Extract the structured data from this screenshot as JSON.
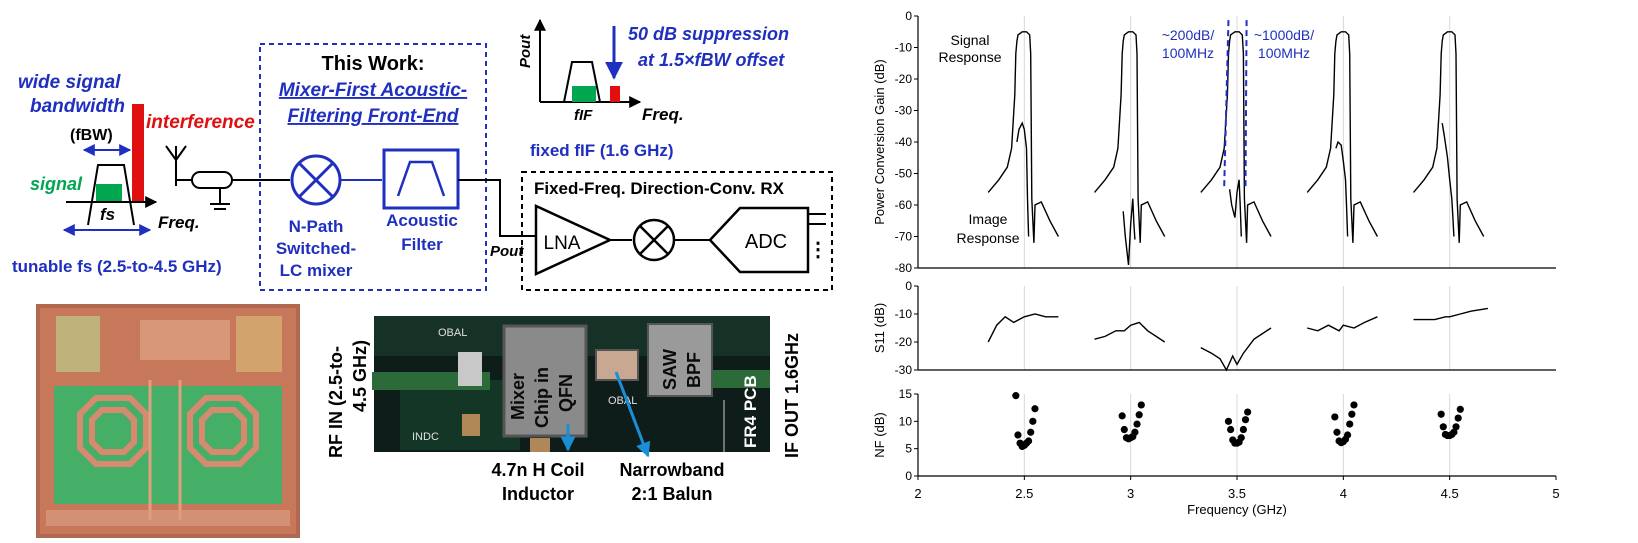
{
  "colors": {
    "blue": "#1f2fbf",
    "red": "#e01010",
    "green": "#00a650",
    "black": "#000000",
    "chip_orange": "#c8785a",
    "chip_green": "#2fb86a",
    "pcb_dark": "#0e1d1a",
    "photo_label": "#0a0a0a"
  },
  "diagram": {
    "input_spectrum": {
      "wide_bw_label_1": "wide signal",
      "wide_bw_label_2": "bandwidth",
      "fbw_label": "(fBW)",
      "signal_label": "signal",
      "interference_label": "interference",
      "fs_label": "fs",
      "freq_label": "Freq.",
      "tunable_label": "tunable fs (2.5-to-4.5 GHz)"
    },
    "this_work": {
      "title": "This Work:",
      "subtitle_1": "Mixer-First Acoustic-",
      "subtitle_2": "Filtering Front-End",
      "mixer_label_1": "N-Path",
      "mixer_label_2": "Switched-",
      "mixer_label_3": "LC mixer",
      "filter_label_1": "Acoustic",
      "filter_label_2": "Filter"
    },
    "output_spectrum": {
      "pout_label": "Pout",
      "suppression_1": "50 dB suppression",
      "suppression_2": "at 1.5×fBW offset",
      "fif_label": "fIF",
      "freq_label": "Freq.",
      "fixed_if_label": "fixed fIF (1.6 GHz)"
    },
    "rx": {
      "title": "Fixed-Freq. Direction-Conv. RX",
      "lna_label": "LNA",
      "adc_label": "ADC",
      "pout_label": "Pout"
    }
  },
  "photos": {
    "chip_photo": "die-micrograph",
    "pcb": {
      "rf_in_1": "RF IN (2.5-to-",
      "rf_in_2": "4.5 GHz)",
      "if_out": "IF OUT 1.6GHz",
      "mixer_chip_1": "Mixer",
      "mixer_chip_2": "Chip in",
      "mixer_chip_3": "QFN",
      "saw_1": "SAW",
      "saw_2": "BPF",
      "fr4": "FR4 PCB",
      "coil_1": "4.7n H Coil",
      "coil_2": "Inductor",
      "balun_1": "Narrowband",
      "balun_2": "2:1 Balun",
      "silk_obal": "OBAL",
      "silk_indc": "INDC"
    }
  },
  "chart_data": [
    {
      "type": "line",
      "ylabel": "Power Conversion Gain (dB)",
      "ylim": [
        -80,
        0
      ],
      "yticks": [
        0,
        -10,
        -20,
        -30,
        -40,
        -50,
        -60,
        -70,
        -80
      ],
      "xlim": [
        2,
        5
      ],
      "annotations": [
        "Signal Response",
        "Image Response",
        "~200dB/ 100MHz",
        "~1000dB/ 100MHz"
      ],
      "series": [
        {
          "role": "signal",
          "lo": 2.5,
          "x": [
            2.33,
            2.38,
            2.42,
            2.44,
            2.455,
            2.46,
            2.465,
            2.47,
            2.49,
            2.51,
            2.525,
            2.53,
            2.535,
            2.545,
            2.55,
            2.58,
            2.62,
            2.66
          ],
          "y": [
            -56,
            -52,
            -48,
            -42,
            -25,
            -12,
            -8,
            -6,
            -5,
            -5,
            -6,
            -12,
            -58,
            -72,
            -60,
            -59,
            -65,
            -70
          ]
        },
        {
          "role": "image",
          "lo": 2.5,
          "x": [
            2.465,
            2.475,
            2.49,
            2.5,
            2.51,
            2.515,
            2.52
          ],
          "y": [
            -40,
            -36,
            -34,
            -36,
            -42,
            -58,
            -70
          ]
        },
        {
          "role": "signal",
          "lo": 3.0,
          "x": [
            2.83,
            2.88,
            2.92,
            2.94,
            2.955,
            2.96,
            2.965,
            2.97,
            2.99,
            3.01,
            3.025,
            3.03,
            3.035,
            3.045,
            3.05,
            3.08,
            3.12,
            3.16
          ],
          "y": [
            -56,
            -52,
            -48,
            -42,
            -25,
            -12,
            -8,
            -6,
            -5,
            -5,
            -6,
            -12,
            -58,
            -72,
            -60,
            -59,
            -65,
            -70
          ]
        },
        {
          "role": "image",
          "lo": 3.0,
          "x": [
            2.965,
            2.975,
            2.99,
            3.0,
            3.01,
            3.015,
            3.02
          ],
          "y": [
            -62,
            -70,
            -79,
            -66,
            -58,
            -66,
            -71
          ]
        },
        {
          "role": "signal",
          "lo": 3.5,
          "x": [
            3.33,
            3.38,
            3.42,
            3.44,
            3.455,
            3.46,
            3.465,
            3.47,
            3.49,
            3.51,
            3.525,
            3.53,
            3.535,
            3.545,
            3.55,
            3.58,
            3.62,
            3.66
          ],
          "y": [
            -56,
            -52,
            -48,
            -42,
            -25,
            -12,
            -8,
            -6,
            -5,
            -5,
            -6,
            -12,
            -58,
            -72,
            -60,
            -59,
            -65,
            -70
          ]
        },
        {
          "role": "image",
          "lo": 3.5,
          "x": [
            3.465,
            3.475,
            3.49,
            3.5,
            3.51,
            3.515,
            3.52
          ],
          "y": [
            -55,
            -60,
            -64,
            -56,
            -52,
            -60,
            -70
          ]
        },
        {
          "role": "signal",
          "lo": 4.0,
          "x": [
            3.83,
            3.88,
            3.92,
            3.94,
            3.955,
            3.96,
            3.965,
            3.97,
            3.99,
            4.01,
            4.025,
            4.03,
            4.035,
            4.045,
            4.05,
            4.08,
            4.12,
            4.16
          ],
          "y": [
            -56,
            -52,
            -48,
            -42,
            -25,
            -12,
            -8,
            -6,
            -5,
            -5,
            -6,
            -12,
            -58,
            -72,
            -60,
            -59,
            -65,
            -70
          ]
        },
        {
          "role": "image",
          "lo": 4.0,
          "x": [
            3.965,
            3.975,
            3.99,
            4.0,
            4.01,
            4.015,
            4.02
          ],
          "y": [
            -42,
            -40,
            -41,
            -46,
            -52,
            -60,
            -70
          ]
        },
        {
          "role": "signal",
          "lo": 4.5,
          "x": [
            4.33,
            4.38,
            4.42,
            4.44,
            4.455,
            4.46,
            4.465,
            4.47,
            4.49,
            4.51,
            4.525,
            4.53,
            4.535,
            4.545,
            4.55,
            4.58,
            4.62,
            4.66
          ],
          "y": [
            -56,
            -52,
            -48,
            -42,
            -25,
            -12,
            -8,
            -6,
            -5,
            -5,
            -6,
            -12,
            -58,
            -72,
            -60,
            -59,
            -65,
            -70
          ]
        },
        {
          "role": "image",
          "lo": 4.5,
          "x": [
            4.465,
            4.475,
            4.49,
            4.5,
            4.51,
            4.515,
            4.52
          ],
          "y": [
            -34,
            -38,
            -45,
            -52,
            -58,
            -64,
            -70
          ]
        },
        {
          "role": "slope-marker",
          "x": [
            3.44,
            3.46
          ],
          "y": [
            -54,
            -1
          ]
        },
        {
          "role": "slope-marker",
          "x": [
            3.54,
            3.545
          ],
          "y": [
            -54,
            -1
          ]
        }
      ]
    },
    {
      "type": "line",
      "ylabel": "S11 (dB)",
      "ylim": [
        -30,
        0
      ],
      "yticks": [
        0,
        -10,
        -20,
        -30
      ],
      "xlim": [
        2,
        5
      ],
      "series": [
        {
          "x": [
            2.33,
            2.37,
            2.41,
            2.45,
            2.5,
            2.55,
            2.6,
            2.66
          ],
          "y": [
            -20,
            -14,
            -11,
            -13,
            -11,
            -10,
            -11,
            -11
          ]
        },
        {
          "x": [
            2.83,
            2.88,
            2.93,
            2.97,
            3.0,
            3.04,
            3.08,
            3.16
          ],
          "y": [
            -19,
            -18,
            -16,
            -16,
            -14,
            -13,
            -16,
            -20
          ]
        },
        {
          "x": [
            3.33,
            3.38,
            3.42,
            3.45,
            3.48,
            3.5,
            3.53,
            3.58,
            3.66
          ],
          "y": [
            -22,
            -24,
            -26,
            -30,
            -25,
            -28,
            -24,
            -19,
            -15
          ]
        },
        {
          "x": [
            3.83,
            3.88,
            3.93,
            3.98,
            4.0,
            4.05,
            4.1,
            4.16
          ],
          "y": [
            -15,
            -16,
            -14,
            -16,
            -14,
            -15,
            -13,
            -11
          ]
        },
        {
          "x": [
            4.33,
            4.38,
            4.43,
            4.48,
            4.5,
            4.55,
            4.6,
            4.68
          ],
          "y": [
            -12,
            -12,
            -12,
            -11,
            -11,
            -10,
            -9,
            -8
          ]
        }
      ]
    },
    {
      "type": "scatter",
      "ylabel": "NF (dB)",
      "xlabel": "Frequency (GHz)",
      "ylim": [
        0,
        15
      ],
      "yticks": [
        0,
        5,
        10,
        15
      ],
      "xlim": [
        2,
        5
      ],
      "xticks": [
        2,
        2.5,
        3,
        3.5,
        4,
        4.5,
        5
      ],
      "x": [
        2.46,
        2.47,
        2.48,
        2.49,
        2.5,
        2.51,
        2.52,
        2.53,
        2.54,
        2.55,
        2.96,
        2.97,
        2.98,
        2.99,
        3.0,
        3.01,
        3.02,
        3.03,
        3.04,
        3.05,
        3.46,
        3.47,
        3.48,
        3.49,
        3.5,
        3.51,
        3.52,
        3.53,
        3.54,
        3.55,
        3.96,
        3.97,
        3.98,
        3.99,
        4.0,
        4.01,
        4.02,
        4.03,
        4.04,
        4.05,
        4.46,
        4.47,
        4.48,
        4.49,
        4.5,
        4.51,
        4.52,
        4.53,
        4.54,
        4.55
      ],
      "y": [
        14.7,
        7.5,
        6.0,
        5.4,
        5.6,
        6.0,
        6.4,
        8.0,
        10.0,
        12.3,
        11.0,
        8.5,
        7.0,
        6.8,
        7.0,
        7.2,
        8.0,
        9.5,
        11.2,
        13.0,
        10.0,
        8.5,
        6.6,
        6.0,
        6.0,
        6.2,
        7.0,
        8.5,
        10.3,
        11.7,
        10.8,
        8.0,
        6.4,
        6.1,
        6.3,
        6.7,
        7.5,
        9.5,
        11.3,
        13.0,
        11.3,
        9.0,
        7.6,
        7.4,
        7.4,
        7.6,
        8.0,
        9.0,
        10.6,
        12.2
      ]
    }
  ]
}
